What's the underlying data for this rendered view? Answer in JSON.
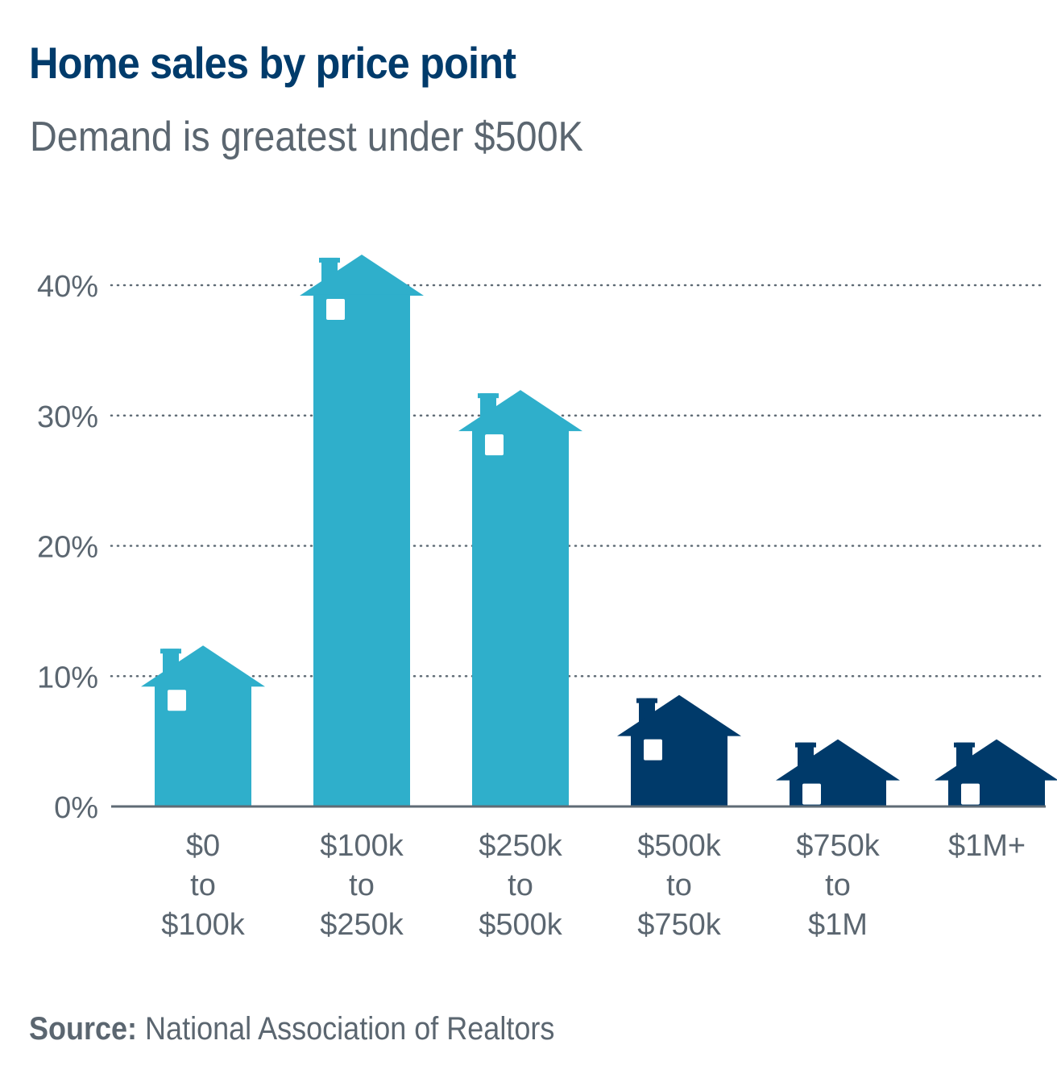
{
  "chart_data": {
    "type": "bar",
    "title": "Home sales by price point",
    "subtitle": "Demand is greatest under $500K",
    "xlabel": "",
    "ylabel": "",
    "ylim": [
      0,
      40
    ],
    "grid": true,
    "yticks": [
      0,
      10,
      20,
      30,
      40
    ],
    "ytick_labels": [
      "0%",
      "10%",
      "20%",
      "30%",
      "40%"
    ],
    "categories": [
      [
        "$0",
        "to",
        "$100k"
      ],
      [
        "$100k",
        "to",
        "$250k"
      ],
      [
        "$250k",
        "to",
        "$500k"
      ],
      [
        "$500k",
        "to",
        "$750k"
      ],
      [
        "$750k",
        "to",
        "$1M"
      ],
      [
        "$1M+"
      ]
    ],
    "values": [
      9.2,
      39.2,
      28.8,
      5.4,
      2.0,
      2.0
    ],
    "bar_colors": [
      "#2fafcb",
      "#2fafcb",
      "#2fafcb",
      "#003a6a",
      "#003a6a",
      "#003a6a"
    ],
    "mark_style": "house",
    "source_label": "Source:",
    "source_text": "National Association of Realtors"
  }
}
